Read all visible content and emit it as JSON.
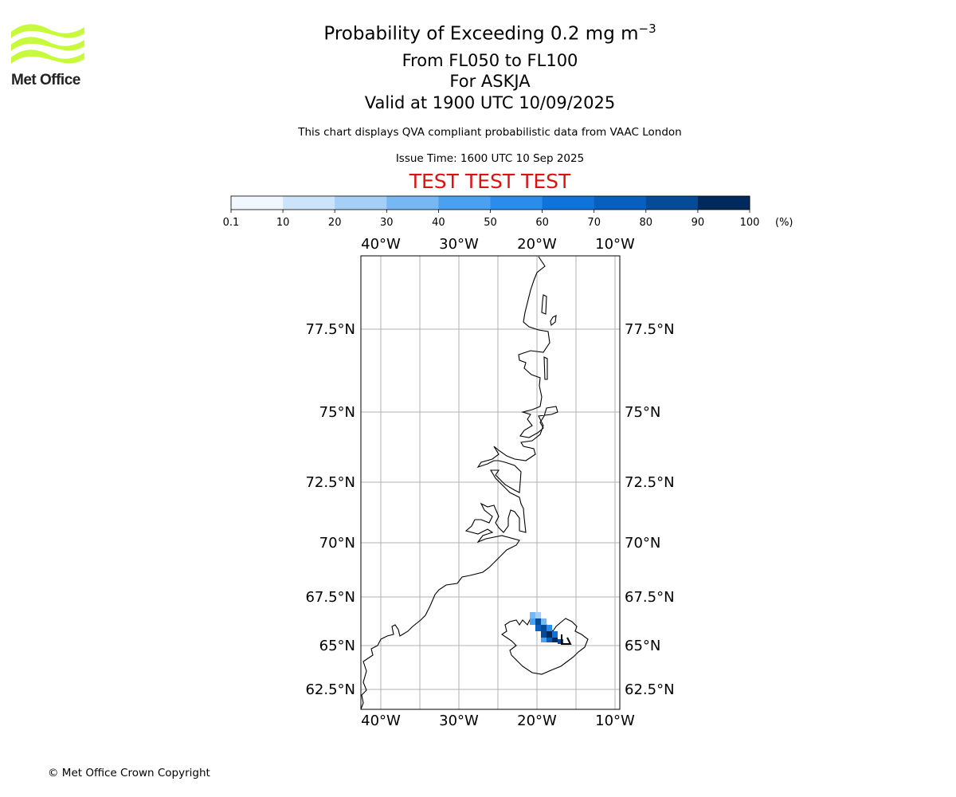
{
  "logo": {
    "text": "Met Office",
    "color": "#c8fa3c"
  },
  "title": {
    "main": "Probability of Exceeding 0.2 mg m",
    "main_exponent": "−3",
    "line2": "From FL050 to FL100",
    "line3": "For ASKJA",
    "line4": "Valid at 1900 UTC 10/09/2025"
  },
  "description": "This chart displays QVA compliant probabilistic data from VAAC London",
  "issue_time": "Issue Time: 1600 UTC 10 Sep 2025",
  "test_banner": {
    "text": "TEST TEST TEST",
    "color": "#dd1111"
  },
  "colorbar": {
    "unit_label": "(%)",
    "ticks": [
      "0.1",
      "10",
      "20",
      "30",
      "40",
      "50",
      "60",
      "70",
      "80",
      "90",
      "100"
    ],
    "colors": [
      "#f1f7fe",
      "#cce4fa",
      "#a5cff6",
      "#75b8f4",
      "#4aa1f1",
      "#2a8ced",
      "#0e74dc",
      "#0760bf",
      "#054c98",
      "#002a5e"
    ]
  },
  "map": {
    "lon_labels": [
      "40°W",
      "30°W",
      "20°W",
      "10°W"
    ],
    "lat_labels": [
      "77.5°N",
      "75°N",
      "72.5°N",
      "70°N",
      "67.5°N",
      "65°N",
      "62.5°N"
    ],
    "plume_color": "#054c98"
  },
  "copyright": "© Met Office Crown Copyright"
}
